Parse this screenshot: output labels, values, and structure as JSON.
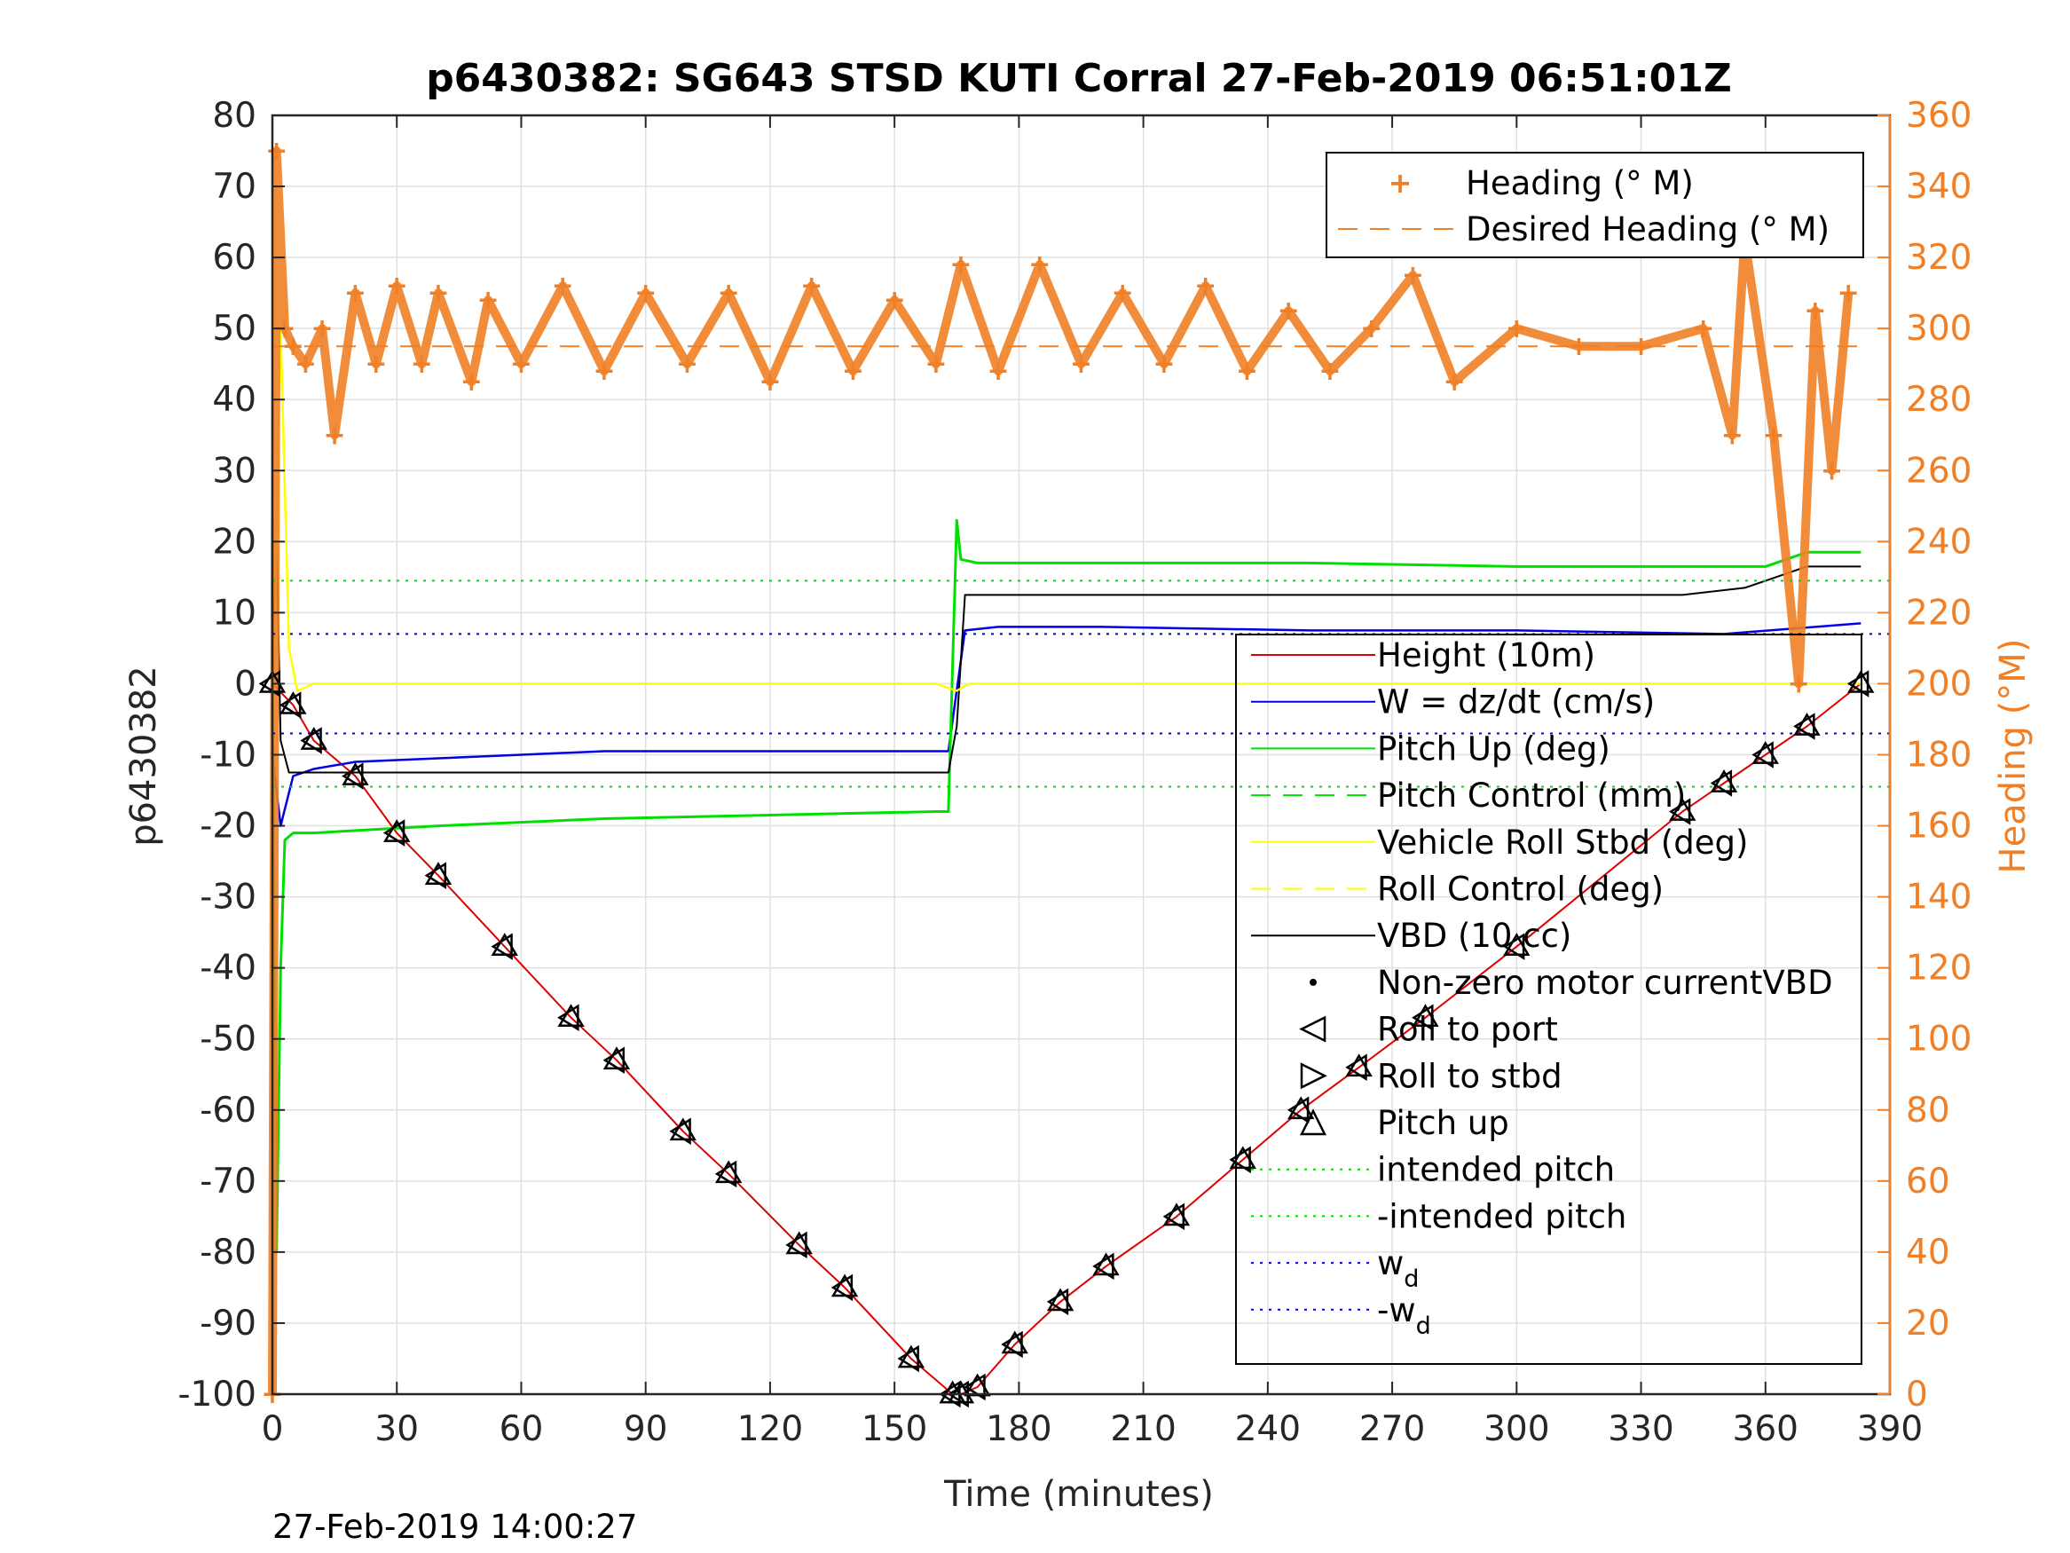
{
  "chart_data": {
    "type": "line",
    "title": "p6430382: SG643 STSD KUTI Corral 27-Feb-2019 06:51:01Z",
    "xlabel": "Time (minutes)",
    "ylabel": "p6430382",
    "ylabel_right": "Heading (°M)",
    "xlim": [
      0,
      390
    ],
    "ylim": [
      -100,
      80
    ],
    "ylim_right": [
      0,
      360
    ],
    "x_ticks": [
      0,
      30,
      60,
      90,
      120,
      150,
      180,
      210,
      240,
      270,
      300,
      330,
      360,
      390
    ],
    "y_ticks": [
      80,
      70,
      60,
      50,
      40,
      30,
      20,
      10,
      0,
      -10,
      -20,
      -30,
      -40,
      -50,
      -60,
      -70,
      -80,
      -90,
      -100
    ],
    "y_ticks_right": [
      360,
      340,
      320,
      300,
      280,
      260,
      240,
      220,
      200,
      180,
      160,
      140,
      120,
      100,
      80,
      60,
      40,
      20,
      0
    ],
    "grid": true,
    "footer_timestamp": "27-Feb-2019 14:00:27",
    "colors": {
      "heading": "#f07f25",
      "height": "#e00000",
      "w": "#0000e6",
      "pitch": "#00e000",
      "roll": "#ffff00",
      "vbd": "#000000",
      "axis_right": "#f07f25"
    },
    "legend_top": [
      {
        "label": "Heading (° M)",
        "style": "orange-plus"
      },
      {
        "label": "Desired Heading (° M)",
        "style": "orange-dash"
      }
    ],
    "legend_main": [
      {
        "label": "Height (10m)",
        "style": "red-line"
      },
      {
        "label": "W = dz/dt (cm/s)",
        "style": "blue-line"
      },
      {
        "label": "Pitch Up (deg)",
        "style": "green-line"
      },
      {
        "label": "Pitch Control (mm)",
        "style": "green-dash"
      },
      {
        "label": "Vehicle Roll Stbd (deg)",
        "style": "yellow-line"
      },
      {
        "label": "Roll Control (deg)",
        "style": "yellow-dash"
      },
      {
        "label": "VBD (10 cc)",
        "style": "black-line"
      },
      {
        "label": "Non-zero motor currentVBD",
        "style": "black-dot"
      },
      {
        "label": "Roll to port",
        "style": "tri-left"
      },
      {
        "label": "Roll to stbd",
        "style": "tri-right"
      },
      {
        "label": "Pitch up",
        "style": "tri-up"
      },
      {
        "label": "intended pitch",
        "style": "green-dot"
      },
      {
        "label": "-intended pitch",
        "style": "green-dot"
      },
      {
        "label": "w",
        "sub": "d",
        "style": "blue-dot"
      },
      {
        "label": "-w",
        "sub": "d",
        "style": "blue-dot"
      }
    ],
    "series": [
      {
        "name": "Height (10m)",
        "x": [
          0,
          5,
          10,
          20,
          30,
          40,
          56,
          72,
          83,
          99,
          110,
          127,
          138,
          154,
          164,
          166,
          170,
          179,
          190,
          201,
          218,
          234,
          248,
          262,
          278,
          300,
          340,
          350,
          360,
          370,
          383
        ],
        "y": [
          0,
          -3,
          -8,
          -13,
          -21,
          -27,
          -37,
          -47,
          -53,
          -63,
          -69,
          -79,
          -85,
          -95,
          -100,
          -100,
          -99,
          -93,
          -87,
          -82,
          -75,
          -67,
          -60,
          -54,
          -47,
          -37,
          -18,
          -14,
          -10,
          -6,
          0
        ]
      },
      {
        "name": "W = dz/dt (cm/s)",
        "x": [
          0,
          2,
          5,
          10,
          20,
          40,
          60,
          80,
          100,
          120,
          140,
          160,
          163,
          167,
          175,
          200,
          250,
          300,
          350,
          383
        ],
        "y": [
          -10,
          -20,
          -13,
          -12,
          -11,
          -10.5,
          -10,
          -9.5,
          -9.5,
          -9.5,
          -9.5,
          -9.5,
          -9.5,
          7.5,
          8,
          8,
          7.5,
          7.5,
          7,
          8.5
        ]
      },
      {
        "name": "Pitch Up (deg)",
        "x": [
          0,
          1,
          2,
          3,
          5,
          10,
          40,
          80,
          120,
          160,
          163,
          165,
          166,
          170,
          200,
          250,
          300,
          360,
          370,
          383
        ],
        "y": [
          0,
          -80,
          -40,
          -22,
          -21,
          -21,
          -20,
          -19,
          -18.5,
          -18,
          -18,
          23,
          17.5,
          17,
          17,
          17,
          16.5,
          16.5,
          18.5,
          18.5
        ]
      },
      {
        "name": "VBD (10 cc)",
        "x": [
          0,
          1,
          2,
          4,
          163,
          165,
          167,
          340,
          355,
          360,
          370,
          383
        ],
        "y": [
          0,
          20,
          -8,
          -12.5,
          -12.5,
          -6,
          12.5,
          12.5,
          13.5,
          14.5,
          16.5,
          16.5
        ]
      },
      {
        "name": "Vehicle Roll Stbd (deg)",
        "x": [
          0,
          2,
          4,
          6,
          10,
          160,
          165,
          168,
          383
        ],
        "y": [
          -10,
          50,
          5,
          -1,
          0,
          0,
          -1,
          0,
          0
        ]
      },
      {
        "name": "Heading (° M)",
        "axis": "right",
        "x": [
          0,
          1,
          3,
          5,
          8,
          12,
          15,
          20,
          25,
          30,
          36,
          40,
          48,
          52,
          60,
          70,
          80,
          90,
          100,
          110,
          120,
          130,
          140,
          150,
          160,
          166,
          175,
          185,
          195,
          205,
          215,
          225,
          235,
          245,
          255,
          265,
          275,
          285,
          300,
          315,
          330,
          345,
          352,
          355,
          362,
          368,
          372,
          376,
          380
        ],
        "y": [
          0,
          350,
          300,
          295,
          290,
          300,
          270,
          310,
          290,
          312,
          290,
          310,
          285,
          308,
          290,
          312,
          288,
          310,
          290,
          310,
          285,
          312,
          288,
          308,
          290,
          318,
          288,
          318,
          290,
          310,
          290,
          312,
          288,
          305,
          288,
          300,
          315,
          285,
          300,
          295,
          295,
          300,
          270,
          325,
          270,
          200,
          305,
          260,
          310
        ]
      },
      {
        "name": "Desired Heading (° M)",
        "axis": "right",
        "x": [
          0,
          383
        ],
        "y": [
          295,
          295
        ]
      },
      {
        "name": "intended pitch",
        "x": [
          0,
          390
        ],
        "y": [
          14.5,
          14.5
        ]
      },
      {
        "name": "-intended pitch",
        "x": [
          0,
          390
        ],
        "y": [
          -14.5,
          -14.5
        ]
      },
      {
        "name": "w",
        "x": [
          0,
          390
        ],
        "y": [
          7,
          7
        ]
      },
      {
        "name": "-w",
        "x": [
          0,
          390
        ],
        "y": [
          -7,
          -7
        ]
      }
    ]
  }
}
